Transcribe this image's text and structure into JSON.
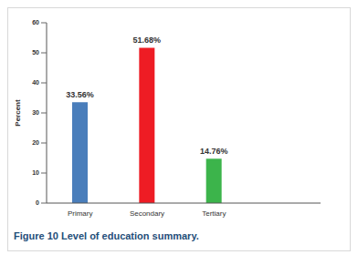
{
  "chart_data": {
    "type": "bar",
    "title": "Figure 10 Level of education summary.",
    "y_label": "Percent",
    "categories": [
      "Primary",
      "Secondary",
      "Tertiary"
    ],
    "values": [
      33.56,
      51.68,
      14.76
    ],
    "value_labels": [
      "33.56%",
      "51.68%",
      "14.76%"
    ],
    "colors": [
      "#4a7ebb",
      "#ee1c24",
      "#3cb44b"
    ],
    "ylim": [
      0,
      60
    ],
    "yticks": [
      0,
      10,
      20,
      30,
      40,
      50,
      60
    ],
    "grid": false,
    "data_labels": true
  }
}
